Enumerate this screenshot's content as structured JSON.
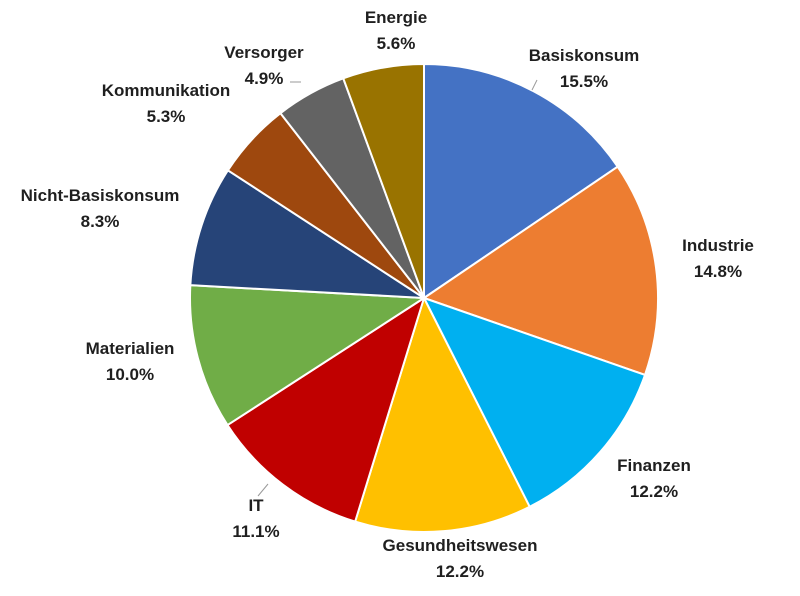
{
  "chart_data": {
    "type": "pie",
    "title": "",
    "start": "12 o'clock, clockwise",
    "series": [
      {
        "name": "Basiskonsum",
        "value": 15.5,
        "label": "15.5%",
        "color": "#4472C4"
      },
      {
        "name": "Industrie",
        "value": 14.8,
        "label": "14.8%",
        "color": "#ED7D31"
      },
      {
        "name": "Finanzen",
        "value": 12.2,
        "label": "12.2%",
        "color": "#00B0F0"
      },
      {
        "name": "Gesundheitswesen",
        "value": 12.2,
        "label": "12.2%",
        "color": "#FFC000"
      },
      {
        "name": "IT",
        "value": 11.1,
        "label": "11.1%",
        "color": "#C00000"
      },
      {
        "name": "Materialien",
        "value": 10.0,
        "label": "10.0%",
        "color": "#70AD47"
      },
      {
        "name": "Nicht-Basiskonsum",
        "value": 8.3,
        "label": "8.3%",
        "color": "#264478"
      },
      {
        "name": "Kommunikation",
        "value": 5.3,
        "label": "5.3%",
        "color": "#9E480E"
      },
      {
        "name": "Versorger",
        "value": 4.9,
        "label": "4.9%",
        "color": "#636363"
      },
      {
        "name": "Energie",
        "value": 5.6,
        "label": "5.6%",
        "color": "#997300"
      }
    ]
  }
}
